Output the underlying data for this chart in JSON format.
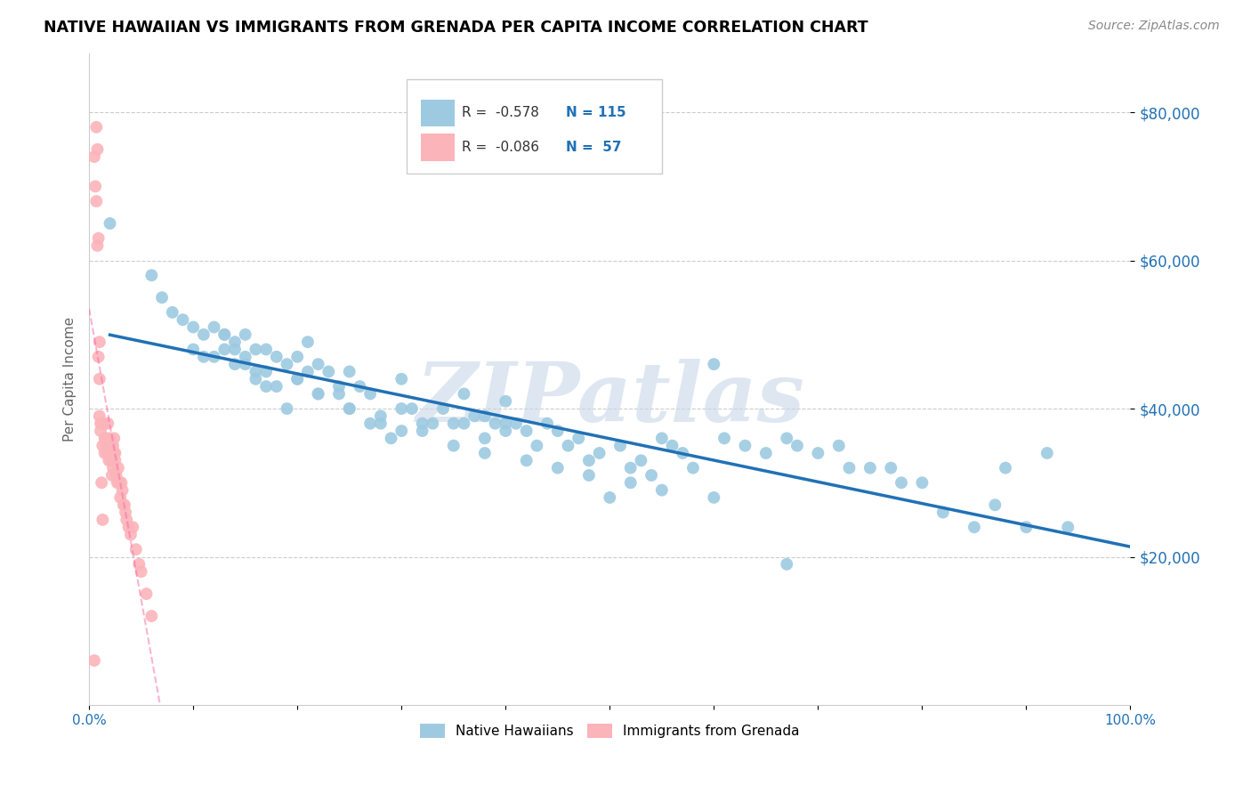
{
  "title": "NATIVE HAWAIIAN VS IMMIGRANTS FROM GRENADA PER CAPITA INCOME CORRELATION CHART",
  "source": "Source: ZipAtlas.com",
  "ylabel": "Per Capita Income",
  "y_ticks": [
    20000,
    40000,
    60000,
    80000
  ],
  "y_tick_labels": [
    "$20,000",
    "$40,000",
    "$60,000",
    "$80,000"
  ],
  "y_max": 88000,
  "y_min": 0,
  "x_min": 0.0,
  "x_max": 1.0,
  "blue_color": "#9ecae1",
  "pink_color": "#fbb4b9",
  "blue_line_color": "#2171b5",
  "pink_line_color": "#f768a1",
  "watermark": "ZIPatlas",
  "legend_label_blue": "Native Hawaiians",
  "legend_label_pink": "Immigrants from Grenada",
  "blue_x": [
    0.02,
    0.06,
    0.07,
    0.08,
    0.09,
    0.1,
    0.1,
    0.11,
    0.11,
    0.12,
    0.12,
    0.13,
    0.13,
    0.14,
    0.14,
    0.15,
    0.15,
    0.16,
    0.16,
    0.17,
    0.17,
    0.18,
    0.18,
    0.19,
    0.2,
    0.2,
    0.21,
    0.22,
    0.22,
    0.23,
    0.24,
    0.25,
    0.25,
    0.26,
    0.27,
    0.28,
    0.29,
    0.3,
    0.3,
    0.31,
    0.32,
    0.33,
    0.34,
    0.35,
    0.36,
    0.37,
    0.38,
    0.39,
    0.4,
    0.4,
    0.41,
    0.42,
    0.43,
    0.44,
    0.45,
    0.46,
    0.47,
    0.48,
    0.49,
    0.5,
    0.51,
    0.52,
    0.53,
    0.54,
    0.55,
    0.56,
    0.57,
    0.58,
    0.6,
    0.61,
    0.63,
    0.65,
    0.67,
    0.68,
    0.7,
    0.72,
    0.73,
    0.75,
    0.77,
    0.78,
    0.8,
    0.82,
    0.85,
    0.87,
    0.88,
    0.9,
    0.92,
    0.94,
    0.13,
    0.14,
    0.19,
    0.21,
    0.24,
    0.27,
    0.32,
    0.36,
    0.38,
    0.4,
    0.67,
    0.15,
    0.16,
    0.17,
    0.2,
    0.22,
    0.25,
    0.28,
    0.3,
    0.35,
    0.38,
    0.42,
    0.45,
    0.48,
    0.52,
    0.55,
    0.6
  ],
  "blue_y": [
    65000,
    58000,
    55000,
    53000,
    52000,
    51000,
    48000,
    50000,
    47000,
    51000,
    47000,
    50000,
    48000,
    49000,
    46000,
    50000,
    47000,
    48000,
    45000,
    48000,
    45000,
    47000,
    43000,
    46000,
    47000,
    44000,
    45000,
    46000,
    42000,
    45000,
    43000,
    45000,
    40000,
    43000,
    42000,
    39000,
    36000,
    44000,
    40000,
    40000,
    37000,
    38000,
    40000,
    38000,
    42000,
    39000,
    36000,
    38000,
    41000,
    37000,
    38000,
    37000,
    35000,
    38000,
    37000,
    35000,
    36000,
    33000,
    34000,
    28000,
    35000,
    32000,
    33000,
    31000,
    36000,
    35000,
    34000,
    32000,
    46000,
    36000,
    35000,
    34000,
    36000,
    35000,
    34000,
    35000,
    32000,
    32000,
    32000,
    30000,
    30000,
    26000,
    24000,
    27000,
    32000,
    24000,
    34000,
    24000,
    50000,
    48000,
    40000,
    49000,
    42000,
    38000,
    38000,
    38000,
    39000,
    38000,
    19000,
    46000,
    44000,
    43000,
    44000,
    42000,
    40000,
    38000,
    37000,
    35000,
    34000,
    33000,
    32000,
    31000,
    30000,
    29000,
    28000
  ],
  "pink_x": [
    0.005,
    0.006,
    0.007,
    0.008,
    0.009,
    0.01,
    0.01,
    0.011,
    0.012,
    0.013,
    0.014,
    0.015,
    0.015,
    0.016,
    0.017,
    0.018,
    0.018,
    0.019,
    0.02,
    0.02,
    0.021,
    0.021,
    0.022,
    0.022,
    0.023,
    0.023,
    0.024,
    0.024,
    0.025,
    0.025,
    0.026,
    0.027,
    0.028,
    0.029,
    0.03,
    0.031,
    0.032,
    0.033,
    0.034,
    0.035,
    0.036,
    0.038,
    0.04,
    0.042,
    0.045,
    0.048,
    0.05,
    0.055,
    0.06,
    0.007,
    0.008,
    0.009,
    0.01,
    0.011,
    0.012,
    0.013,
    0.005
  ],
  "pink_y": [
    74000,
    70000,
    68000,
    62000,
    47000,
    44000,
    39000,
    37000,
    38000,
    35000,
    38000,
    36000,
    34000,
    36000,
    35000,
    38000,
    34000,
    33000,
    36000,
    34000,
    33000,
    35000,
    33000,
    31000,
    32000,
    35000,
    34000,
    36000,
    33000,
    34000,
    31000,
    30000,
    32000,
    30000,
    28000,
    30000,
    29000,
    27000,
    27000,
    26000,
    25000,
    24000,
    23000,
    24000,
    21000,
    19000,
    18000,
    15000,
    12000,
    78000,
    75000,
    63000,
    49000,
    38000,
    30000,
    25000,
    6000
  ]
}
